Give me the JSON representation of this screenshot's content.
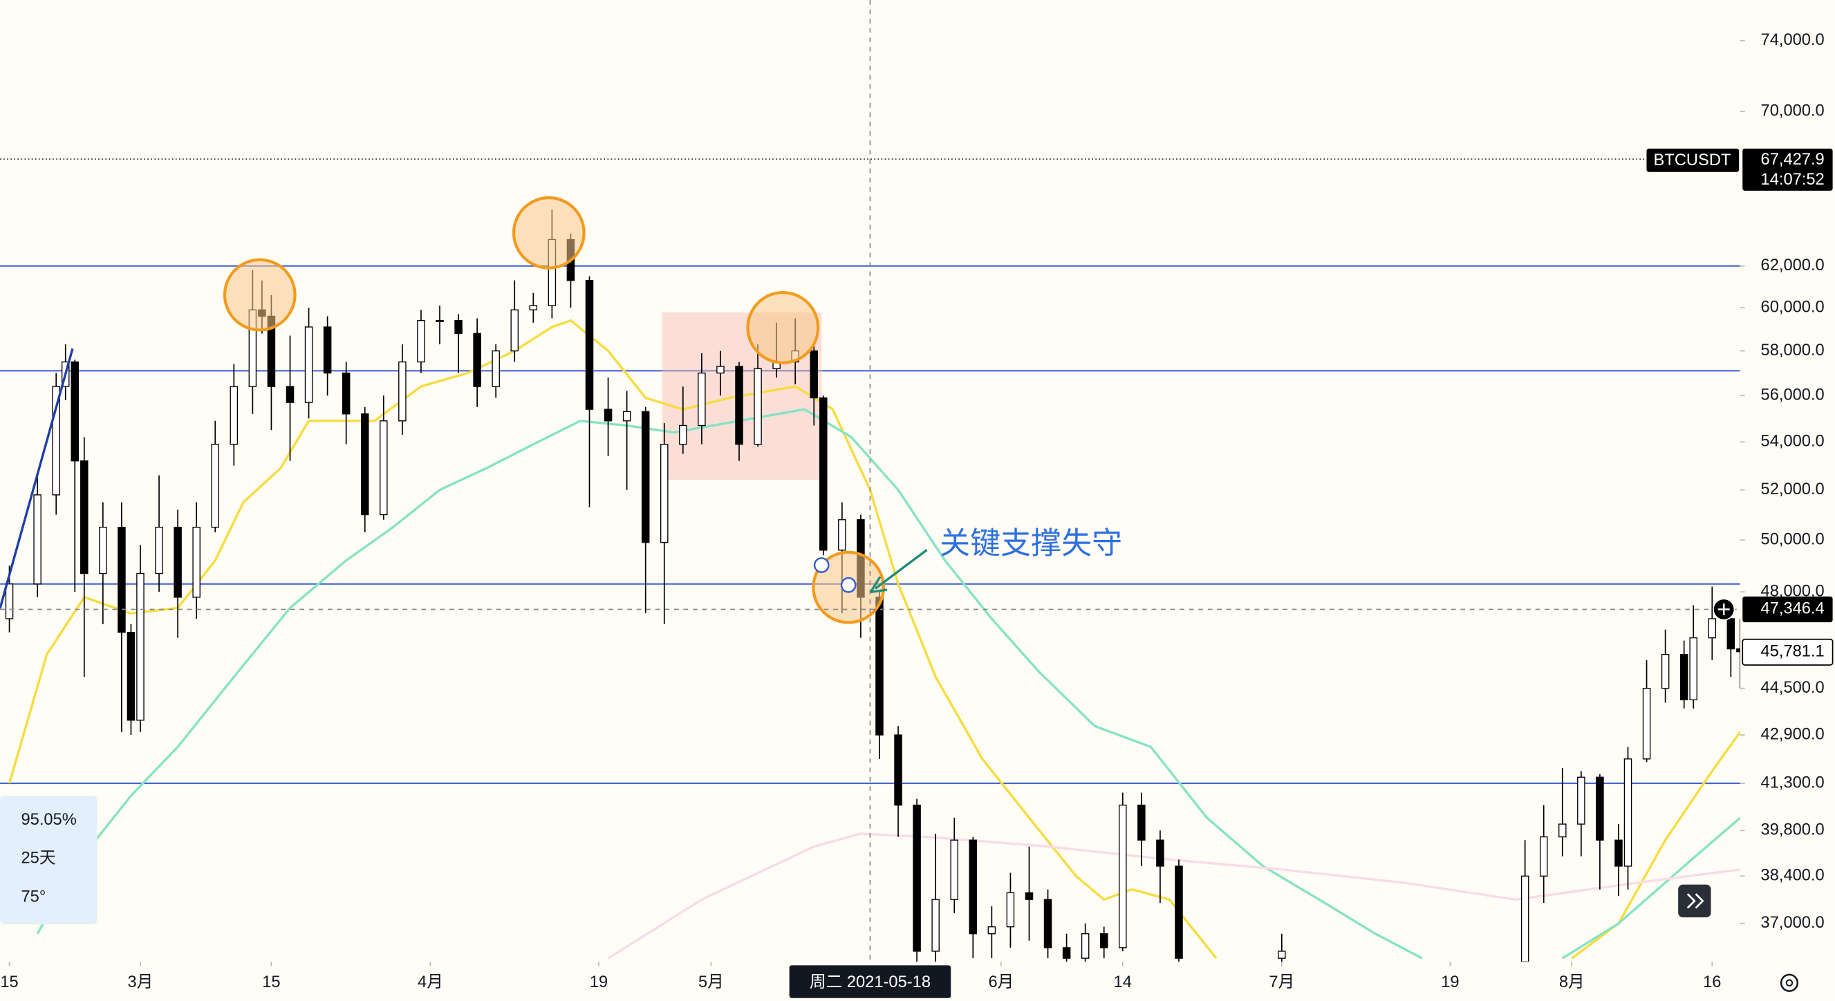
{
  "chart_data": {
    "type": "candlestick",
    "log": true,
    "xlim": [
      "2021-02-14",
      "2021-08-19"
    ],
    "ylim": [
      35900,
      76400
    ],
    "xticks": [
      {
        "value": "2021-02-15",
        "label": "15"
      },
      {
        "value": "2021-03-01",
        "label": "3月"
      },
      {
        "value": "2021-03-15",
        "label": "15"
      },
      {
        "value": "2021-04-01",
        "label": "4月"
      },
      {
        "value": "2021-04-19",
        "label": "19"
      },
      {
        "value": "2021-05-01",
        "label": "5月"
      },
      {
        "value": "2021-06-01",
        "label": "6月"
      },
      {
        "value": "2021-06-14",
        "label": "14"
      },
      {
        "value": "2021-07-01",
        "label": "7月"
      },
      {
        "value": "2021-07-19",
        "label": "19"
      },
      {
        "value": "2021-08-01",
        "label": "8月"
      },
      {
        "value": "2021-08-16",
        "label": "16"
      }
    ],
    "yticks": [
      {
        "value": 74000,
        "label": "74,000.0"
      },
      {
        "value": 70000,
        "label": "70,000.0"
      },
      {
        "value": 62000,
        "label": "62,000.0"
      },
      {
        "value": 60000,
        "label": "60,000.0"
      },
      {
        "value": 58000,
        "label": "58,000.0"
      },
      {
        "value": 56000,
        "label": "56,000.0"
      },
      {
        "value": 54000,
        "label": "54,000.0"
      },
      {
        "value": 52000,
        "label": "52,000.0"
      },
      {
        "value": 50000,
        "label": "50,000.0"
      },
      {
        "value": 48000,
        "label": "48,000.0"
      },
      {
        "value": 44500,
        "label": "44,500.0"
      },
      {
        "value": 42900,
        "label": "42,900.0"
      },
      {
        "value": 41300,
        "label": "41,300.0"
      },
      {
        "value": 39800,
        "label": "39,800.0"
      },
      {
        "value": 38400,
        "label": "38,400.0"
      },
      {
        "value": 37000,
        "label": "37,000.0"
      }
    ],
    "x": [
      "2021-02-15",
      "2021-02-18",
      "2021-02-20",
      "2021-02-21",
      "2021-02-22",
      "2021-02-23",
      "2021-02-25",
      "2021-02-27",
      "2021-02-28",
      "2021-03-01",
      "2021-03-03",
      "2021-03-05",
      "2021-03-07",
      "2021-03-09",
      "2021-03-11",
      "2021-03-13",
      "2021-03-14",
      "2021-03-15",
      "2021-03-17",
      "2021-03-19",
      "2021-03-21",
      "2021-03-23",
      "2021-03-25",
      "2021-03-27",
      "2021-03-29",
      "2021-03-31",
      "2021-04-02",
      "2021-04-04",
      "2021-04-06",
      "2021-04-08",
      "2021-04-10",
      "2021-04-12",
      "2021-04-14",
      "2021-04-16",
      "2021-04-18",
      "2021-04-20",
      "2021-04-22",
      "2021-04-24",
      "2021-04-26",
      "2021-04-28",
      "2021-04-30",
      "2021-05-02",
      "2021-05-04",
      "2021-05-06",
      "2021-05-08",
      "2021-05-10",
      "2021-05-12",
      "2021-05-13",
      "2021-05-15",
      "2021-05-17",
      "2021-05-19",
      "2021-05-21",
      "2021-05-23",
      "2021-05-25",
      "2021-05-27",
      "2021-05-29",
      "2021-05-31",
      "2021-06-02",
      "2021-06-04",
      "2021-06-06",
      "2021-06-08",
      "2021-06-10",
      "2021-06-12",
      "2021-06-14",
      "2021-06-16",
      "2021-06-18",
      "2021-06-20",
      "2021-07-01",
      "2021-07-27",
      "2021-07-29",
      "2021-07-31",
      "2021-08-02",
      "2021-08-04",
      "2021-08-06",
      "2021-08-07",
      "2021-08-09",
      "2021-08-11",
      "2021-08-13",
      "2021-08-14",
      "2021-08-16",
      "2021-08-18",
      "2021-08-19"
    ],
    "open": [
      47000,
      48300,
      51800,
      56400,
      57500,
      53200,
      48700,
      50500,
      46500,
      43400,
      48700,
      50500,
      47800,
      50500,
      53900,
      56400,
      59900,
      59600,
      56400,
      55700,
      59100,
      57000,
      55200,
      51000,
      54900,
      57500,
      59400,
      59400,
      58800,
      56400,
      58000,
      59900,
      60100,
      63300,
      61300,
      55400,
      54900,
      55300,
      49900,
      53900,
      54700,
      57000,
      57300,
      53900,
      57200,
      57500,
      58000,
      55900,
      49600,
      50800,
      47800,
      42900,
      40600,
      36200,
      37700,
      39500,
      36700,
      36900,
      37900,
      37700,
      36300,
      36000,
      36700,
      36300,
      40600,
      39500,
      38700,
      36000,
      35900,
      38400,
      39600,
      40000,
      41500,
      39500,
      38700,
      42100,
      44500,
      45700,
      44100,
      46300,
      47000,
      45900
    ],
    "high": [
      49000,
      52500,
      57000,
      58300,
      57600,
      54200,
      51500,
      51500,
      46800,
      49800,
      52600,
      51200,
      51500,
      54900,
      57400,
      61800,
      61300,
      60600,
      58700,
      60000,
      59600,
      57500,
      55500,
      56000,
      58300,
      59900,
      60100,
      59700,
      59500,
      58300,
      61300,
      60700,
      64800,
      63600,
      61500,
      56800,
      56200,
      55500,
      54800,
      56400,
      57900,
      58000,
      57500,
      58300,
      59300,
      59500,
      58400,
      56000,
      51500,
      51000,
      48000,
      43200,
      40800,
      39700,
      40200,
      39600,
      37500,
      38500,
      39300,
      38000,
      36700,
      37000,
      36900,
      41000,
      41000,
      39800,
      38900,
      36700,
      39500,
      40600,
      41800,
      41700,
      41600,
      40000,
      42500,
      45500,
      46600,
      46200,
      47500,
      48200,
      47400,
      47000
    ],
    "low": [
      46500,
      47800,
      51000,
      55800,
      48000,
      44900,
      46800,
      43000,
      42900,
      43000,
      48000,
      46300,
      47000,
      50300,
      53000,
      55200,
      58800,
      54500,
      53200,
      55000,
      56000,
      53900,
      50300,
      50800,
      54300,
      57000,
      58300,
      57000,
      55500,
      55900,
      57500,
      59300,
      59500,
      60000,
      51300,
      53400,
      52000,
      47200,
      46800,
      53500,
      53900,
      56000,
      53200,
      53800,
      56800,
      56500,
      54700,
      49400,
      47200,
      46300,
      42100,
      39600,
      35900,
      35900,
      37300,
      36000,
      36000,
      36300,
      36500,
      36000,
      35900,
      35900,
      36000,
      36200,
      38700,
      37600,
      35900,
      35900,
      35900,
      37600,
      39000,
      39000,
      38000,
      37800,
      38000,
      42000,
      44000,
      43800,
      43800,
      45500,
      44900,
      44500
    ],
    "close": [
      48300,
      51800,
      56400,
      57500,
      53200,
      48700,
      50500,
      46500,
      43400,
      48700,
      50500,
      47800,
      50500,
      53900,
      56400,
      59900,
      59600,
      56400,
      55700,
      59100,
      57000,
      55200,
      51000,
      54900,
      57500,
      59400,
      59400,
      58800,
      56400,
      58000,
      59900,
      60100,
      63300,
      61300,
      55400,
      54900,
      55300,
      49900,
      53900,
      54700,
      57000,
      57300,
      53900,
      57200,
      57500,
      58000,
      55900,
      49600,
      50800,
      47800,
      42900,
      40600,
      36200,
      37700,
      39500,
      36700,
      36900,
      37900,
      37700,
      36300,
      36000,
      36700,
      36300,
      40600,
      39500,
      38700,
      36000,
      36200,
      38400,
      39600,
      40000,
      41500,
      39500,
      38700,
      42100,
      44500,
      45700,
      44100,
      46300,
      47000,
      45900,
      45800
    ],
    "lines": [
      {
        "color": "#f7dc3f",
        "x": [
          "2021-02-15",
          "2021-02-19",
          "2021-02-23",
          "2021-02-28",
          "2021-03-05",
          "2021-03-09",
          "2021-03-12",
          "2021-03-16",
          "2021-03-19",
          "2021-03-26",
          "2021-03-31",
          "2021-04-05",
          "2021-04-10",
          "2021-04-14",
          "2021-04-16",
          "2021-04-20",
          "2021-04-24",
          "2021-04-28",
          "2021-05-03",
          "2021-05-10",
          "2021-05-14",
          "2021-05-18",
          "2021-05-21",
          "2021-05-25",
          "2021-05-30",
          "2021-06-04",
          "2021-06-09",
          "2021-06-12",
          "2021-06-15",
          "2021-06-19",
          "2021-06-24",
          "2021-07-20",
          "2021-08-01",
          "2021-08-06",
          "2021-08-11",
          "2021-08-16",
          "2021-08-19"
        ],
        "values": [
          41300,
          45700,
          47800,
          47200,
          47400,
          49200,
          51500,
          52900,
          54900,
          54900,
          56400,
          57000,
          58000,
          59100,
          59400,
          58000,
          55900,
          55400,
          55900,
          56400,
          55400,
          52000,
          48300,
          44900,
          42100,
          40200,
          38400,
          37700,
          38000,
          37700,
          36000,
          null,
          36000,
          37000,
          39500,
          41700,
          43000
        ]
      },
      {
        "color": "#86e3c5",
        "x": [
          "2021-02-18",
          "2021-02-22",
          "2021-02-28",
          "2021-03-05",
          "2021-03-11",
          "2021-03-17",
          "2021-03-23",
          "2021-03-28",
          "2021-04-02",
          "2021-04-07",
          "2021-04-12",
          "2021-04-17",
          "2021-04-22",
          "2021-04-27",
          "2021-05-04",
          "2021-05-11",
          "2021-05-16",
          "2021-05-21",
          "2021-05-26",
          "2021-05-31",
          "2021-06-05",
          "2021-06-11",
          "2021-06-17",
          "2021-06-23",
          "2021-06-29",
          "2021-07-05",
          "2021-07-11",
          "2021-07-16",
          "2021-07-24",
          "2021-07-31",
          "2021-08-06",
          "2021-08-13",
          "2021-08-19"
        ],
        "values": [
          36700,
          38700,
          40900,
          42500,
          44900,
          47400,
          49200,
          50500,
          52000,
          52900,
          53900,
          54900,
          54700,
          54400,
          54900,
          55400,
          54200,
          52000,
          49200,
          47000,
          45100,
          43200,
          42500,
          40200,
          38700,
          37700,
          36700,
          36000,
          null,
          36000,
          37000,
          38700,
          40200
        ]
      },
      {
        "color": "#f8dbe8",
        "x": [
          "2021-04-20",
          "2021-04-30",
          "2021-05-12",
          "2021-05-17",
          "2021-05-24",
          "2021-06-06",
          "2021-06-19",
          "2021-07-01",
          "2021-07-14",
          "2021-07-26",
          "2021-08-08",
          "2021-08-19"
        ],
        "values": [
          36000,
          37700,
          39300,
          39700,
          39600,
          39300,
          38900,
          38600,
          38200,
          37700,
          38200,
          38600
        ]
      }
    ],
    "levels": [
      62000,
      57100,
      48300,
      41300
    ],
    "level_color": "#3a5fcd",
    "up_color": "#ffffff",
    "down_color": "#000000",
    "annotation": "关键支撑失守",
    "symbol": "BTCUSDT",
    "last_price": {
      "value": 67427.9,
      "label": "67,427.9"
    },
    "countdown": "14:07:52",
    "crosshair": {
      "date": "2021-05-18",
      "date_label": "周二 2021-05-18",
      "price": 47346.4,
      "price_label": "47,346.4"
    },
    "current_price": {
      "value": 45781.1,
      "label": "45,781.1"
    },
    "panel": [
      "95.05%",
      "25天",
      "75°"
    ]
  }
}
